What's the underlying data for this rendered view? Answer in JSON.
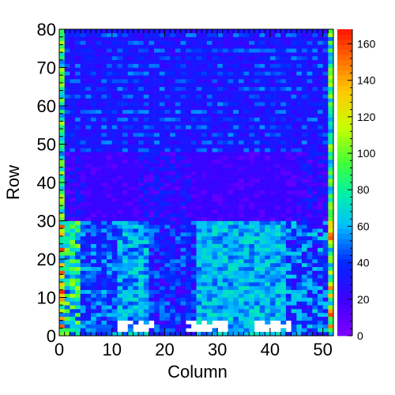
{
  "chart_data": {
    "type": "heatmap",
    "title": "",
    "xlabel": "Column",
    "ylabel": "Row",
    "xlim": [
      0,
      52
    ],
    "ylim": [
      0,
      80
    ],
    "x_ticks": [
      "0",
      "10",
      "20",
      "30",
      "40",
      "50"
    ],
    "y_ticks": [
      "0",
      "10",
      "20",
      "30",
      "40",
      "50",
      "60",
      "70",
      "80"
    ],
    "z_range": [
      0,
      168
    ],
    "z_ticks": [
      "0",
      "20",
      "40",
      "60",
      "80",
      "100",
      "120",
      "140",
      "160"
    ],
    "colorscale": "rainbow (violet → blue → cyan → green → yellow → orange → red)",
    "n_columns": 52,
    "n_rows": 80,
    "regions": [
      {
        "rows": [
          0,
          30
        ],
        "columns": [
          0,
          4
        ],
        "value_range": [
          40,
          110
        ],
        "note": "edge column hot, up to ~150"
      },
      {
        "rows": [
          0,
          30
        ],
        "columns": [
          4,
          11
        ],
        "value_range": [
          25,
          65
        ]
      },
      {
        "rows": [
          0,
          30
        ],
        "columns": [
          11,
          17
        ],
        "value_range": [
          40,
          75
        ]
      },
      {
        "rows": [
          0,
          30
        ],
        "columns": [
          17,
          26
        ],
        "value_range": [
          15,
          55
        ]
      },
      {
        "rows": [
          0,
          30
        ],
        "columns": [
          26,
          43
        ],
        "value_range": [
          45,
          75
        ]
      },
      {
        "rows": [
          0,
          30
        ],
        "columns": [
          43,
          52
        ],
        "value_range": [
          20,
          70
        ]
      },
      {
        "rows": [
          30,
          48
        ],
        "columns": [
          0,
          52
        ],
        "value_range": [
          8,
          40
        ],
        "note": "violet band, columns 5-15 and 25-45 darkest"
      },
      {
        "rows": [
          48,
          80
        ],
        "columns": [
          0,
          52
        ],
        "value_range": [
          20,
          55
        ],
        "note": "horizontal stripes alternating blue / cyan"
      }
    ],
    "empty_cells": [
      {
        "columns": [
          11,
          18
        ],
        "rows": [
          1,
          4
        ]
      },
      {
        "columns": [
          24,
          32
        ],
        "rows": [
          1,
          4
        ]
      },
      {
        "columns": [
          37,
          44
        ],
        "rows": [
          1,
          4
        ]
      }
    ],
    "edge_columns": {
      "left": "0",
      "right": "51",
      "value_range": [
        50,
        165
      ]
    }
  }
}
